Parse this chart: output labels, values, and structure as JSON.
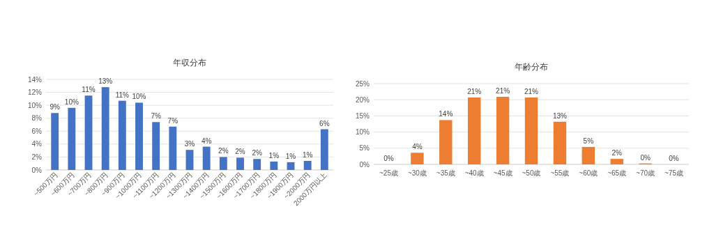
{
  "chart_data": [
    {
      "type": "bar",
      "title": "年収分布",
      "categories": [
        "~500万円",
        "~600万円",
        "~700万円",
        "~800万円",
        "~900万円",
        "~1000万円",
        "~1100万円",
        "~1200万円",
        "~1300万円",
        "~1400万円",
        "~1500万円",
        "~1600万円",
        "~1700万円",
        "~1800万円",
        "~1900万円",
        "~2000万円",
        "2000万円以上"
      ],
      "series": [
        {
          "color": "#4472c4",
          "values": [
            8.8,
            9.6,
            11.5,
            12.8,
            10.7,
            10.4,
            7.4,
            6.7,
            3.1,
            3.6,
            2.0,
            1.9,
            1.7,
            1.3,
            1.2,
            1.4,
            6.3
          ],
          "value_labels": [
            "9%",
            "10%",
            "11%",
            "13%",
            "11%",
            "10%",
            "7%",
            "7%",
            "3%",
            "4%",
            "2%",
            "2%",
            "2%",
            "1%",
            "1%",
            "1%",
            "6%"
          ]
        }
      ],
      "ylim": [
        0,
        14
      ],
      "yticks": [
        {
          "value": 0,
          "label": "0%"
        },
        {
          "value": 2,
          "label": "2%"
        },
        {
          "value": 4,
          "label": "4%"
        },
        {
          "value": 6,
          "label": "6%"
        },
        {
          "value": 8,
          "label": "8%"
        },
        {
          "value": 10,
          "label": "10%"
        },
        {
          "value": 12,
          "label": "12%"
        },
        {
          "value": 14,
          "label": "14%"
        }
      ],
      "grid": "y"
    },
    {
      "type": "bar",
      "title": "年齢分布",
      "categories": [
        "~25歳",
        "~30歳",
        "~35歳",
        "~40歳",
        "~45歳",
        "~50歳",
        "~55歳",
        "~60歳",
        "~65歳",
        "~70歳",
        "~75歳"
      ],
      "series": [
        {
          "color": "#ed7d31",
          "values": [
            0,
            3.6,
            13.7,
            20.7,
            20.9,
            20.7,
            13.2,
            5.4,
            1.7,
            0.3,
            0
          ],
          "value_labels": [
            "0%",
            "4%",
            "14%",
            "21%",
            "21%",
            "21%",
            "13%",
            "5%",
            "2%",
            "0%",
            "0%"
          ]
        }
      ],
      "ylim": [
        0,
        25
      ],
      "yticks": [
        {
          "value": 0,
          "label": "0%"
        },
        {
          "value": 5,
          "label": "5%"
        },
        {
          "value": 10,
          "label": "10%"
        },
        {
          "value": 15,
          "label": "15%"
        },
        {
          "value": 20,
          "label": "20%"
        },
        {
          "value": 25,
          "label": "25%"
        }
      ],
      "grid": "y"
    }
  ]
}
